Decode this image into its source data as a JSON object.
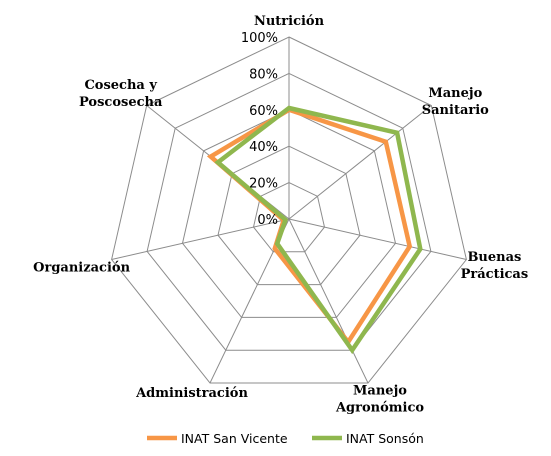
{
  "chart_data": {
    "type": "radar",
    "categories": [
      "Nutrición",
      "Manejo Sanitario",
      "Buenas Prácticas",
      "Manejo Agronómico",
      "Administración",
      "Organización",
      "Cosecha y Poscosecha"
    ],
    "category_lines": [
      [
        "Nutrición"
      ],
      [
        "Manejo",
        "Sanitario"
      ],
      [
        "Buenas",
        "Prácticas"
      ],
      [
        "Manejo",
        "Agronómico"
      ],
      [
        "Administración"
      ],
      [
        "Organización"
      ],
      [
        "Cosecha y",
        "Poscosecha"
      ]
    ],
    "ticks": [
      "0%",
      "20%",
      "40%",
      "60%",
      "80%",
      "100%"
    ],
    "tick_values": [
      0,
      20,
      40,
      60,
      80,
      100
    ],
    "rmax": 100,
    "grid": true,
    "legend_position": "bottom",
    "series": [
      {
        "name": "INAT San Vicente",
        "color": "#F79646",
        "values": [
          60,
          68,
          68,
          75,
          18,
          3,
          55
        ]
      },
      {
        "name": "INAT Sonsón",
        "color": "#8FB74E",
        "values": [
          61,
          76,
          74,
          80,
          15,
          2,
          50
        ]
      }
    ]
  }
}
